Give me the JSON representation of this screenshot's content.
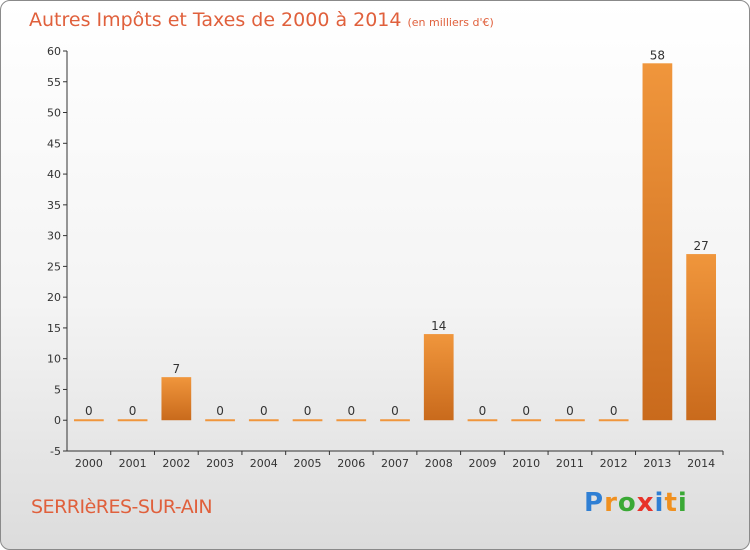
{
  "header": {
    "title": "Autres Impôts et Taxes de 2000 à 2014",
    "unit": "(en milliers d'€)"
  },
  "footer": {
    "place": "SERRIèRES-SUR-AIN",
    "logo_letters": [
      "P",
      "r",
      "o",
      "x",
      "i",
      "t",
      "i"
    ],
    "logo_colors": [
      "#2f7fd4",
      "#f0901f",
      "#3aa935",
      "#e8332a",
      "#2f7fd4",
      "#f0901f",
      "#3aa935"
    ]
  },
  "chart_data": {
    "type": "bar",
    "title": "Autres Impôts et Taxes de 2000 à 2014",
    "subtitle": "(en milliers d'€)",
    "xlabel": "",
    "ylabel": "",
    "categories": [
      "2000",
      "2001",
      "2002",
      "2003",
      "2004",
      "2005",
      "2006",
      "2007",
      "2008",
      "2009",
      "2010",
      "2011",
      "2012",
      "2013",
      "2014"
    ],
    "values": [
      0,
      0,
      7,
      0,
      0,
      0,
      0,
      0,
      14,
      0,
      0,
      0,
      0,
      58,
      27
    ],
    "data_labels": [
      "0",
      "0",
      "7",
      "0",
      "0",
      "0",
      "0",
      "0",
      "14",
      "0",
      "0",
      "0",
      "0",
      "58",
      "27"
    ],
    "ylim": [
      -5,
      60
    ],
    "yticks": [
      -5,
      0,
      5,
      10,
      15,
      20,
      25,
      30,
      35,
      40,
      45,
      50,
      55,
      60
    ],
    "grid": false,
    "legend": "none",
    "bar_color": "#f0963c",
    "bar_color_dark": "#c96a1c"
  }
}
